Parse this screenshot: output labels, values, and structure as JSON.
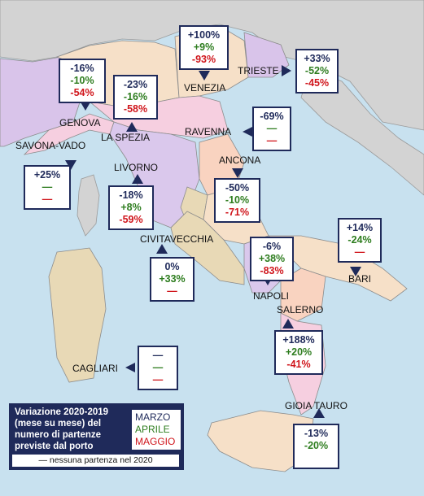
{
  "colors": {
    "sea": "#c8e1ef",
    "foreign_land": "#d3d3d3",
    "box_border": "#1f2a5a",
    "marzo": "#1f2a5a",
    "aprile": "#2e7d1f",
    "maggio": "#d0161c"
  },
  "ports": {
    "venezia": {
      "name": "VENEZIA",
      "marzo": "+100%",
      "aprile": "+9%",
      "maggio": "-93%"
    },
    "trieste": {
      "name": "TRIESTE",
      "marzo": "+33%",
      "aprile": "-52%",
      "maggio": "-45%"
    },
    "genova": {
      "name": "GENOVA",
      "marzo": "-16%",
      "aprile": "-10%",
      "maggio": "-54%"
    },
    "la_spezia": {
      "name": "LA SPEZIA",
      "marzo": "-23%",
      "aprile": "-16%",
      "maggio": "-58%"
    },
    "ravenna": {
      "name": "RAVENNA",
      "marzo": "-69%",
      "aprile": "—",
      "maggio": "—"
    },
    "savona": {
      "name": "SAVONA-VADO",
      "marzo": "+25%",
      "aprile": "—",
      "maggio": "—"
    },
    "livorno": {
      "name": "LIVORNO",
      "marzo": "-18%",
      "aprile": "+8%",
      "maggio": "-59%"
    },
    "ancona": {
      "name": "ANCONA",
      "marzo": "-50%",
      "aprile": "-10%",
      "maggio": "-71%"
    },
    "bari": {
      "name": "BARI",
      "marzo": "+14%",
      "aprile": "-24%",
      "maggio": "—"
    },
    "civitavecchia": {
      "name": "CIVITAVECCHIA",
      "marzo": "0%",
      "aprile": "+33%",
      "maggio": "—"
    },
    "napoli": {
      "name": "NAPOLI",
      "marzo": "-6%",
      "aprile": "+38%",
      "maggio": "-83%"
    },
    "salerno": {
      "name": "SALERNO",
      "marzo": "+188%",
      "aprile": "+20%",
      "maggio": "-41%"
    },
    "cagliari": {
      "name": "CAGLIARI",
      "marzo": "—",
      "aprile": "—",
      "maggio": "—"
    },
    "gioia_tauro": {
      "name": "GIOIA TAURO",
      "marzo": "-13%",
      "aprile": "-20%",
      "maggio": ""
    }
  },
  "legend": {
    "title": "Variazione 2020-2019 (mese su mese) del numero di partenze previste dal porto",
    "marzo": "MARZO",
    "aprile": "APRILE",
    "maggio": "MAGGIO",
    "note": "— nessuna partenza nel 2020"
  }
}
